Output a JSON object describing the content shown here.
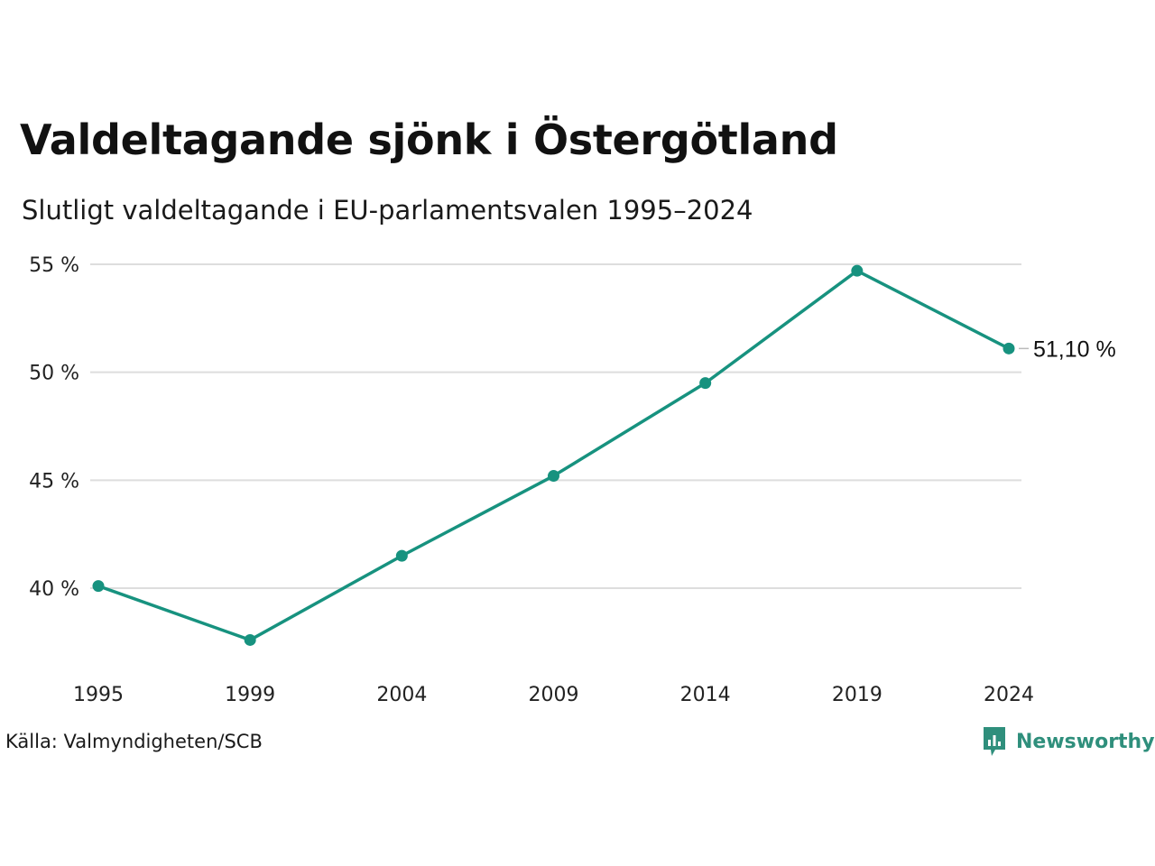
{
  "header": {
    "title": "Valdeltagande sjönk i Östergötland",
    "subtitle": "Slutligt valdeltagande i EU-parlamentsvalen 1995–2024"
  },
  "chart_data": {
    "type": "line",
    "x": [
      "1995",
      "1999",
      "2004",
      "2009",
      "2014",
      "2019",
      "2024"
    ],
    "series": [
      {
        "values": [
          40.1,
          37.6,
          41.5,
          45.2,
          49.5,
          54.7,
          51.1
        ],
        "color": "#17927f"
      }
    ],
    "yticks": [
      40,
      45,
      50,
      55
    ],
    "ytick_labels": [
      "40 %",
      "45 %",
      "50 %",
      "55 %"
    ],
    "ylim": [
      36.5,
      56
    ],
    "grid": true,
    "end_label": "51,10 %",
    "xlabel": "",
    "ylabel": ""
  },
  "footer": {
    "source": "Källa: Valmyndigheten/SCB",
    "brand": "Newsworthy",
    "brand_icon": "newsworthy-logo-icon"
  },
  "colors": {
    "line": "#17927f",
    "grid": "#dddddd",
    "brand": "#2f8f7c"
  }
}
